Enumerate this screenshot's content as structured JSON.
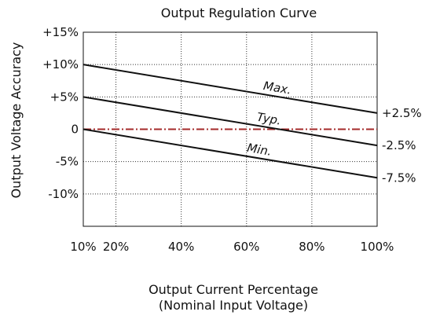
{
  "chart_data": {
    "type": "line",
    "title": "Output Regulation Curve",
    "xlabel": "Output Current Percentage",
    "xlabel_note": "(Nominal Input Voltage)",
    "ylabel": "Output Voltage Accuracy",
    "xlim": [
      10,
      100
    ],
    "ylim": [
      -15,
      15
    ],
    "grid": true,
    "x_ticks": [
      10,
      20,
      40,
      60,
      80,
      100
    ],
    "x_tick_labels": [
      "10%",
      "20%",
      "40%",
      "60%",
      "80%",
      "100%"
    ],
    "y_ticks": [
      15,
      10,
      5,
      0,
      -5,
      -10
    ],
    "y_tick_labels": [
      "+15%",
      "+10%",
      "+5%",
      "0",
      "-5%",
      "-10%"
    ],
    "series": [
      {
        "name": "Max.",
        "x": [
          10,
          100
        ],
        "y": [
          10,
          2.5
        ],
        "color": "#111111",
        "style": "solid",
        "label_at": 65,
        "end_label": "+2.5%"
      },
      {
        "name": "Typ.",
        "x": [
          10,
          100
        ],
        "y": [
          5,
          -2.5
        ],
        "color": "#111111",
        "style": "solid",
        "label_at": 63,
        "end_label": "-2.5%"
      },
      {
        "name": "Min.",
        "x": [
          10,
          100
        ],
        "y": [
          0,
          -7.5
        ],
        "color": "#111111",
        "style": "solid",
        "label_at": 60,
        "end_label": "-7.5%"
      }
    ],
    "reference_line": {
      "y": 0,
      "color": "#a52a2a",
      "style": "dash-dot"
    }
  }
}
